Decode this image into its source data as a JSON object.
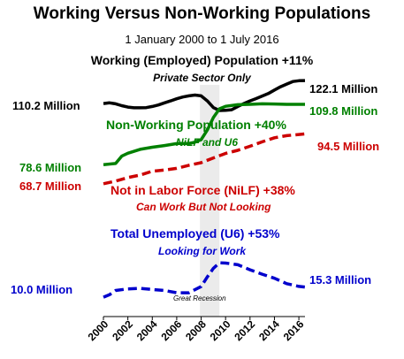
{
  "chart_data": {
    "type": "line",
    "title": "Working Versus Non-Working Populations",
    "subtitle": "1 January 2000 to 1 July 2016",
    "xlabel": "",
    "ylabel": "",
    "xlim": [
      2000,
      2016.5
    ],
    "ylim": [
      0,
      140
    ],
    "grid": false,
    "legend": "none",
    "x_ticks": [
      "2000",
      "2002",
      "2004",
      "2006",
      "2008",
      "2010",
      "2012",
      "2014",
      "2016"
    ],
    "shaded_region": {
      "label": "Great Recession",
      "from": 2007.9,
      "to": 2009.5
    },
    "series": [
      {
        "name": "Working (Employed) Population +11%",
        "note": "Private Sector Only",
        "color": "#000000",
        "style": "solid",
        "start_label": "110.2 Million",
        "end_label": "122.1 Million",
        "x": [
          2000,
          2000.5,
          2001,
          2001.5,
          2002,
          2002.5,
          2003,
          2003.5,
          2004,
          2004.5,
          2005,
          2005.5,
          2006,
          2006.5,
          2007,
          2007.5,
          2008,
          2008.5,
          2009,
          2009.5,
          2010,
          2010.5,
          2011,
          2011.5,
          2012,
          2012.5,
          2013,
          2013.5,
          2014,
          2014.5,
          2015,
          2015.5,
          2016,
          2016.5
        ],
        "values": [
          110.2,
          110.6,
          110.1,
          109.1,
          108.4,
          108.0,
          108.0,
          108.1,
          108.7,
          109.5,
          110.6,
          111.6,
          112.7,
          113.6,
          114.2,
          114.6,
          114.2,
          111.6,
          108.1,
          106.6,
          106.7,
          107.0,
          108.7,
          110.2,
          111.6,
          112.8,
          114.1,
          115.4,
          117.2,
          118.9,
          120.3,
          121.6,
          122.0,
          122.1
        ]
      },
      {
        "name": "Non-Working Population +40%",
        "note": "NiLF and U6",
        "color": "#008000",
        "style": "solid",
        "start_label": "78.6 Million",
        "end_label": "109.8 Million",
        "x": [
          2000,
          2001,
          2001.5,
          2002,
          2003,
          2004,
          2005,
          2006,
          2007,
          2007.5,
          2008,
          2008.5,
          2009,
          2009.5,
          2010,
          2011,
          2012,
          2013,
          2014,
          2015,
          2016.5
        ],
        "values": [
          78.6,
          79.2,
          83.0,
          84.5,
          86.5,
          87.6,
          88.5,
          89.5,
          89.6,
          90.2,
          91.5,
          96.5,
          103.0,
          107.5,
          108.8,
          109.6,
          109.8,
          110.1,
          110.0,
          109.8,
          109.8
        ]
      },
      {
        "name": "Not in Labor Force (NiLF) +38%",
        "note": "Can Work But Not Looking",
        "color": "#cc0000",
        "style": "dashed",
        "start_label": "68.7 Million",
        "end_label": "94.5 Million",
        "x": [
          2000,
          2001,
          2002,
          2003,
          2004,
          2005,
          2006,
          2007,
          2008,
          2009,
          2010,
          2011,
          2012,
          2013,
          2014,
          2015,
          2016,
          2016.5
        ],
        "values": [
          68.7,
          70.1,
          71.9,
          73.2,
          75.2,
          75.8,
          76.7,
          78.3,
          79.6,
          82.1,
          84.4,
          86.0,
          88.1,
          90.4,
          92.5,
          93.6,
          94.2,
          94.5
        ]
      },
      {
        "name": "Total Unemployed (U6) +53%",
        "note": "Looking for Work",
        "color": "#0000cc",
        "style": "dashed",
        "start_label": "10.0 Million",
        "end_label": "15.3 Million",
        "x": [
          2000,
          2000.5,
          2001,
          2002,
          2003,
          2004,
          2005,
          2006,
          2007,
          2008,
          2008.5,
          2009,
          2009.5,
          2010,
          2011,
          2012,
          2013,
          2014,
          2015,
          2016,
          2016.5
        ],
        "values": [
          10.0,
          11.3,
          13.5,
          14.3,
          14.6,
          14.0,
          13.5,
          12.3,
          12.3,
          15.5,
          20.5,
          25.0,
          27.8,
          27.7,
          26.8,
          24.2,
          21.9,
          19.8,
          17.0,
          15.6,
          15.3
        ]
      }
    ]
  }
}
